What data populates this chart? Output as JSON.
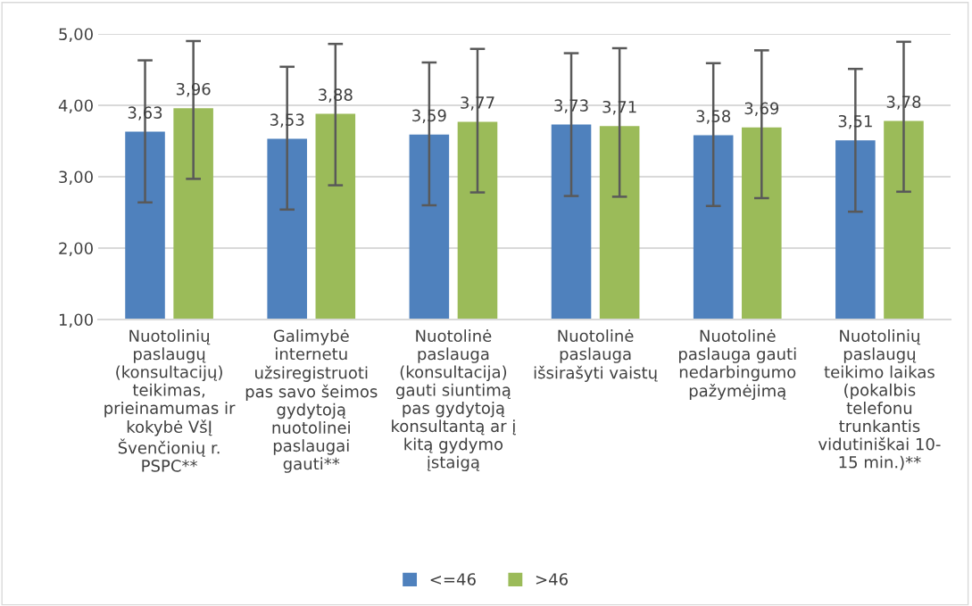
{
  "chart_data": {
    "type": "bar",
    "categories": [
      "Nuotolinių\npaslaugų\n(konsultacijų)\nteikimas,\nprieinamumas ir\nkokybė VšĮ\nŠvenčionių r.\nPSPC**",
      "Galimybė\ninternetu\nužsiregistruoti\npas savo šeimos\ngydytoją\nnuotolinei\npaslaugai\ngauti**",
      "Nuotolinė\npaslauga\n(konsultacija)\ngauti siuntimą\npas gydytoją\nkonsultantą ar į\nkitą gydymo\nįstaigą",
      "Nuotolinė\npaslauga\nišsirašyti vaistų",
      "Nuotolinė\npaslauga gauti\nnedarbingumo\npažymėjimą",
      "Nuotolinių\npaslaugų\nteikimo laikas\n(pokalbis\ntelefonu\ntrunkantis\nvidutiniškai 10-\n15 min.)**"
    ],
    "series": [
      {
        "name": "<=46",
        "color": "#4f81bd",
        "values": [
          3.63,
          3.53,
          3.59,
          3.73,
          3.58,
          3.51
        ],
        "value_labels": [
          "3,63",
          "3,53",
          "3,59",
          "3,73",
          "3,58",
          "3,51"
        ],
        "errors": [
          [
            2.64,
            4.63
          ],
          [
            2.54,
            4.54
          ],
          [
            2.6,
            4.6
          ],
          [
            2.73,
            4.73
          ],
          [
            2.59,
            4.59
          ],
          [
            2.51,
            4.51
          ]
        ]
      },
      {
        "name": ">46",
        "color": "#9bbb59",
        "values": [
          3.96,
          3.88,
          3.77,
          3.71,
          3.69,
          3.78
        ],
        "value_labels": [
          "3,96",
          "3,88",
          "3,77",
          "3,71",
          "3,69",
          "3,78"
        ],
        "errors": [
          [
            2.97,
            4.9
          ],
          [
            2.88,
            4.86
          ],
          [
            2.78,
            4.79
          ],
          [
            2.72,
            4.8
          ],
          [
            2.7,
            4.77
          ],
          [
            2.79,
            4.89
          ]
        ]
      }
    ],
    "ylim": [
      1,
      5
    ],
    "yticks": [
      {
        "value": 1,
        "label": "1,00"
      },
      {
        "value": 2,
        "label": "2,00"
      },
      {
        "value": 3,
        "label": "3,00"
      },
      {
        "value": 4,
        "label": "4,00"
      },
      {
        "value": 5,
        "label": "5,00"
      }
    ],
    "grid": "y",
    "legend": "bottom"
  }
}
